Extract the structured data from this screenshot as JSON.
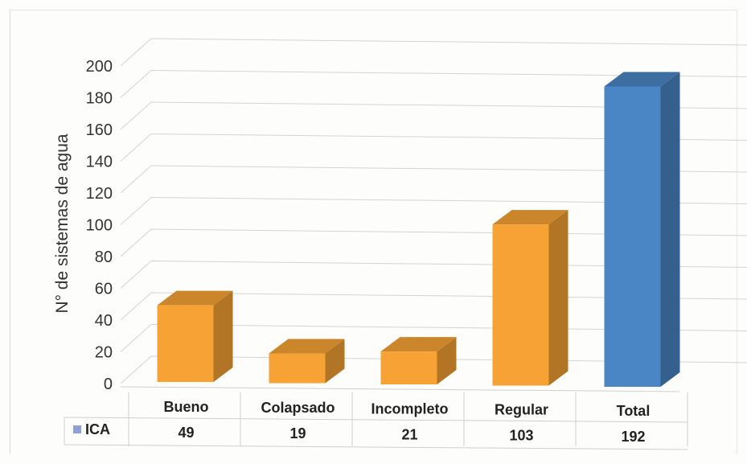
{
  "chart_data": {
    "type": "bar",
    "style": "3d-column-with-data-table",
    "title": "",
    "xlabel": "",
    "ylabel": "N° de sistemas de agua",
    "ylim": [
      0,
      200
    ],
    "yticks": [
      0,
      20,
      40,
      60,
      80,
      100,
      120,
      140,
      160,
      180,
      200
    ],
    "grid": true,
    "categories": [
      "Bueno",
      "Colapsado",
      "Incompleto",
      "Regular",
      "Total"
    ],
    "series": [
      {
        "name": "ICA",
        "values": [
          49,
          19,
          21,
          103,
          192
        ]
      }
    ],
    "colors": {
      "default_bar": "#f7a234",
      "total_bar": "#4a86c5",
      "legend_key": "#8fa0d6",
      "gridline": "#d4d4d4"
    },
    "highlight_category": "Total"
  }
}
